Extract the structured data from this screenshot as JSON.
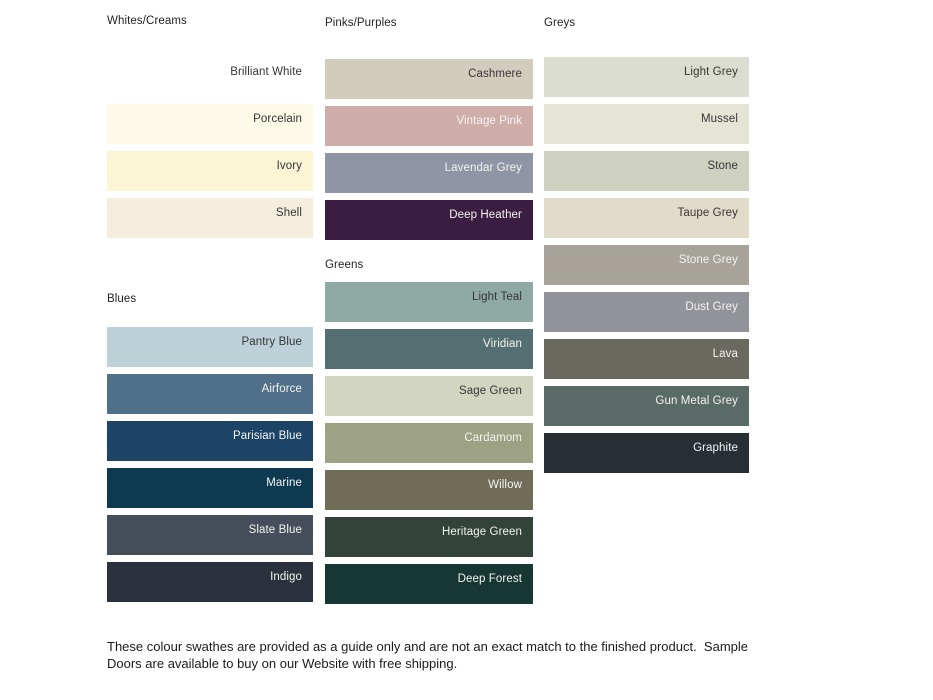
{
  "page_background": "#ffffff",
  "groups": {
    "whites_creams": {
      "title": "Whites/Creams",
      "swatches": [
        {
          "name": "Brilliant White",
          "color": "#ffffff",
          "label_color": "#363636"
        },
        {
          "name": "Porcelain",
          "color": "#fdfae8",
          "label_color": "#363636"
        },
        {
          "name": "Ivory",
          "color": "#fbf5d6",
          "label_color": "#363636"
        },
        {
          "name": "Shell",
          "color": "#f5eddd",
          "label_color": "#363636"
        }
      ]
    },
    "blues": {
      "title": "Blues",
      "swatches": [
        {
          "name": "Pantry Blue",
          "color": "#bdd1d8",
          "label_color": "#363636"
        },
        {
          "name": "Airforce",
          "color": "#50708a",
          "label_color": "#f4f3f0"
        },
        {
          "name": "Parisian Blue",
          "color": "#1c4466",
          "label_color": "#f4f3f0"
        },
        {
          "name": "Marine",
          "color": "#0d3a51",
          "label_color": "#f4f3f0"
        },
        {
          "name": "Slate Blue",
          "color": "#454e5a",
          "label_color": "#f4f3f0"
        },
        {
          "name": "Indigo",
          "color": "#2b323d",
          "label_color": "#f4f3f0"
        }
      ]
    },
    "pinks_purples": {
      "title": "Pinks/Purples",
      "swatches": [
        {
          "name": "Cashmere",
          "color": "#d1ccbb",
          "label_color": "#363636"
        },
        {
          "name": "Vintage Pink",
          "color": "#cfaeaa",
          "label_color": "#f4f3f0"
        },
        {
          "name": "Lavendar Grey",
          "color": "#9095a5",
          "label_color": "#f4f3f0"
        },
        {
          "name": "Deep Heather",
          "color": "#3b1d42",
          "label_color": "#f4f3f0"
        }
      ]
    },
    "greens": {
      "title": "Greens",
      "swatches": [
        {
          "name": "Light Teal",
          "color": "#8fa9a5",
          "label_color": "#363636"
        },
        {
          "name": "Viridian",
          "color": "#546f72",
          "label_color": "#f4f3f0"
        },
        {
          "name": "Sage Green",
          "color": "#d2d5bf",
          "label_color": "#363636"
        },
        {
          "name": "Cardamom",
          "color": "#9ca283",
          "label_color": "#f4f3f0"
        },
        {
          "name": "Willow",
          "color": "#6f6d58",
          "label_color": "#f4f3f0"
        },
        {
          "name": "Heritage Green",
          "color": "#324339",
          "label_color": "#f4f3f0"
        },
        {
          "name": "Deep Forest",
          "color": "#173732",
          "label_color": "#f4f3f0"
        }
      ]
    },
    "greys": {
      "title": "Greys",
      "swatches": [
        {
          "name": "Light Grey",
          "color": "#dcddd1",
          "label_color": "#363636"
        },
        {
          "name": "Mussel",
          "color": "#e4e5d4",
          "label_color": "#363636"
        },
        {
          "name": "Stone",
          "color": "#ced1bf",
          "label_color": "#363636"
        },
        {
          "name": "Taupe Grey",
          "color": "#e1dbc9",
          "label_color": "#363636"
        },
        {
          "name": "Stone Grey",
          "color": "#a7a29a",
          "label_color": "#f4f3f0"
        },
        {
          "name": "Dust Grey",
          "color": "#93949a",
          "label_color": "#f4f3f0"
        },
        {
          "name": "Lava",
          "color": "#6a695f",
          "label_color": "#f4f3f0"
        },
        {
          "name": "Gun Metal Grey",
          "color": "#596a67",
          "label_color": "#f4f3f0"
        },
        {
          "name": "Graphite",
          "color": "#272e34",
          "label_color": "#f4f3f0"
        }
      ]
    }
  },
  "footer": {
    "text": "These colour swathes are provided as a guide only and are not an exact match to the finished product.  Sample\nDoors are available to buy on our Website with free shipping."
  }
}
